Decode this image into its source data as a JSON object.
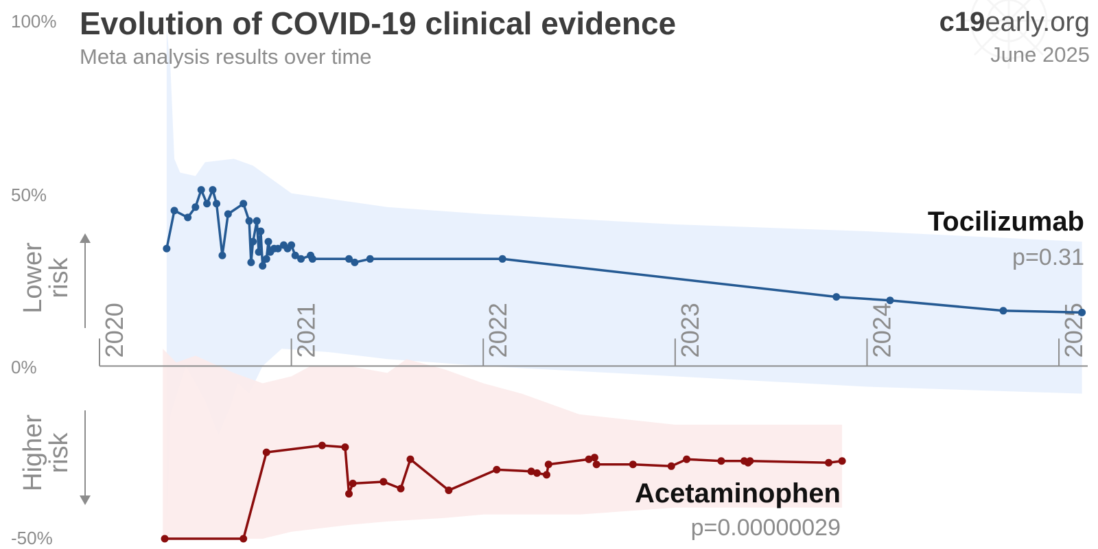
{
  "header": {
    "title": "Evolution of COVID-19 clinical evidence",
    "subtitle": "Meta analysis results over time",
    "brand_bold": "c19",
    "brand_light": "early.org",
    "date": "June 2025"
  },
  "colors": {
    "tocilizumab": "#255a93",
    "tocilizumab_band": "#e7f0fd",
    "acetaminophen": "#8b0d0d",
    "acetaminophen_band": "#fcebeb",
    "axis": "#8c8c8c"
  },
  "chart_data": {
    "type": "line",
    "y_ticks": [
      "100%",
      "50%",
      "0%",
      "-50%"
    ],
    "y_range": [
      -50,
      100
    ],
    "x_ticks": [
      "2020",
      "2021",
      "2022",
      "2023",
      "2024",
      "2025"
    ],
    "x_range": [
      2020.0,
      2025.15
    ],
    "labels": {
      "lower_risk": [
        "Lower",
        "risk"
      ],
      "higher_risk": [
        "Higher",
        "risk"
      ]
    },
    "series": [
      {
        "name": "Tocilizumab",
        "p_value": "p=0.31",
        "points": [
          [
            2020.35,
            34
          ],
          [
            2020.39,
            45
          ],
          [
            2020.46,
            43
          ],
          [
            2020.5,
            46
          ],
          [
            2020.53,
            51
          ],
          [
            2020.56,
            47
          ],
          [
            2020.59,
            51
          ],
          [
            2020.61,
            47
          ],
          [
            2020.64,
            32
          ],
          [
            2020.67,
            44
          ],
          [
            2020.75,
            47
          ],
          [
            2020.78,
            42
          ],
          [
            2020.79,
            30
          ],
          [
            2020.8,
            36
          ],
          [
            2020.82,
            42
          ],
          [
            2020.83,
            33
          ],
          [
            2020.84,
            39
          ],
          [
            2020.85,
            29
          ],
          [
            2020.87,
            31
          ],
          [
            2020.88,
            36
          ],
          [
            2020.89,
            33
          ],
          [
            2020.91,
            34
          ],
          [
            2020.93,
            34
          ],
          [
            2020.96,
            35
          ],
          [
            2020.98,
            34
          ],
          [
            2021.0,
            35
          ],
          [
            2021.02,
            32
          ],
          [
            2021.05,
            31
          ],
          [
            2021.1,
            32
          ],
          [
            2021.11,
            31
          ],
          [
            2021.3,
            31
          ],
          [
            2021.33,
            30
          ],
          [
            2021.41,
            31
          ],
          [
            2022.1,
            31
          ],
          [
            2023.84,
            20
          ],
          [
            2024.12,
            19
          ],
          [
            2024.71,
            16
          ],
          [
            2025.12,
            15.5
          ]
        ],
        "band_upper": [
          [
            2020.35,
            98
          ],
          [
            2020.37,
            86
          ],
          [
            2020.39,
            60
          ],
          [
            2020.42,
            56
          ],
          [
            2020.5,
            55
          ],
          [
            2020.55,
            59
          ],
          [
            2020.7,
            60
          ],
          [
            2020.8,
            58
          ],
          [
            2020.9,
            54
          ],
          [
            2021.0,
            50
          ],
          [
            2021.5,
            46
          ],
          [
            2022.0,
            44
          ],
          [
            2023.0,
            41
          ],
          [
            2024.0,
            39
          ],
          [
            2025.12,
            36
          ]
        ],
        "band_lower": [
          [
            2020.35,
            -49
          ],
          [
            2020.37,
            -14
          ],
          [
            2020.45,
            0
          ],
          [
            2020.55,
            -10
          ],
          [
            2020.62,
            -20
          ],
          [
            2020.68,
            -12
          ],
          [
            2020.72,
            -5
          ],
          [
            2020.78,
            -8
          ],
          [
            2020.85,
            0
          ],
          [
            2020.95,
            5
          ],
          [
            2021.2,
            4
          ],
          [
            2021.5,
            2
          ],
          [
            2022.0,
            0
          ],
          [
            2023.0,
            -3
          ],
          [
            2024.0,
            -6
          ],
          [
            2025.12,
            -8
          ]
        ],
        "label_side": "above"
      },
      {
        "name": "Acetaminophen",
        "p_value": "p=0.00000029",
        "points": [
          [
            2020.34,
            -50
          ],
          [
            2020.75,
            -50
          ],
          [
            2020.87,
            -25
          ],
          [
            2021.16,
            -23
          ],
          [
            2021.28,
            -23.5
          ],
          [
            2021.3,
            -37
          ],
          [
            2021.32,
            -34
          ],
          [
            2021.48,
            -33.5
          ],
          [
            2021.57,
            -35.5
          ],
          [
            2021.62,
            -27
          ],
          [
            2021.82,
            -36
          ],
          [
            2022.07,
            -30
          ],
          [
            2022.25,
            -30.5
          ],
          [
            2022.28,
            -31
          ],
          [
            2022.33,
            -31.5
          ],
          [
            2022.34,
            -28.5
          ],
          [
            2022.55,
            -27
          ],
          [
            2022.58,
            -26.5
          ],
          [
            2022.59,
            -28.5
          ],
          [
            2022.78,
            -28.5
          ],
          [
            2022.98,
            -29
          ],
          [
            2023.06,
            -27
          ],
          [
            2023.24,
            -27.5
          ],
          [
            2023.36,
            -27.5
          ],
          [
            2023.38,
            -28
          ],
          [
            2023.39,
            -27.5
          ],
          [
            2023.8,
            -28
          ],
          [
            2023.87,
            -27.5
          ]
        ],
        "band_upper": [
          [
            2020.33,
            5
          ],
          [
            2020.4,
            1
          ],
          [
            2020.5,
            3
          ],
          [
            2020.7,
            -2
          ],
          [
            2020.85,
            -5
          ],
          [
            2021.0,
            -3
          ],
          [
            2021.1,
            0
          ],
          [
            2021.3,
            0
          ],
          [
            2021.5,
            -2
          ],
          [
            2021.6,
            2
          ],
          [
            2021.8,
            -1
          ],
          [
            2022.0,
            -5
          ],
          [
            2022.2,
            -8
          ],
          [
            2022.3,
            -10
          ],
          [
            2022.5,
            -14
          ],
          [
            2023.0,
            -17
          ],
          [
            2023.5,
            -17
          ],
          [
            2023.87,
            -17
          ]
        ],
        "band_lower": [
          [
            2020.33,
            -50
          ],
          [
            2020.5,
            -50
          ],
          [
            2020.7,
            -50
          ],
          [
            2020.85,
            -50
          ],
          [
            2021.0,
            -48
          ],
          [
            2021.3,
            -46
          ],
          [
            2021.5,
            -45
          ],
          [
            2021.8,
            -44
          ],
          [
            2022.0,
            -43
          ],
          [
            2022.3,
            -43
          ],
          [
            2022.5,
            -43
          ],
          [
            2023.0,
            -41
          ],
          [
            2023.5,
            -41
          ],
          [
            2023.87,
            -41
          ]
        ],
        "label_side": "below"
      }
    ]
  }
}
